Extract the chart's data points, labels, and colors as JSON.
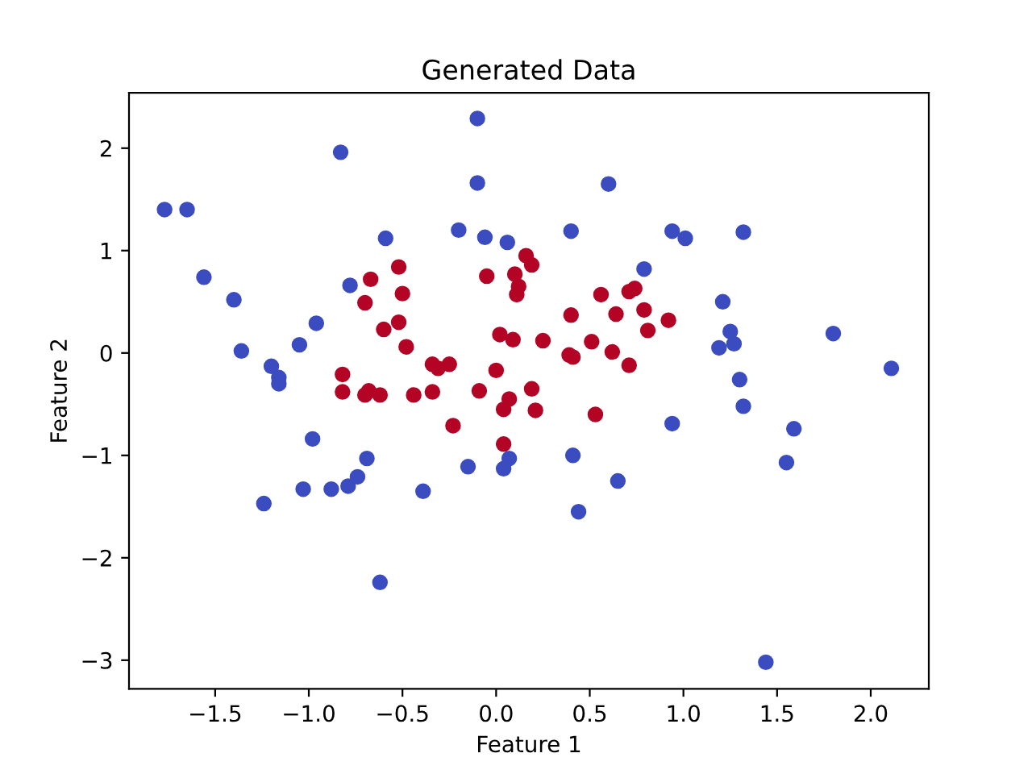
{
  "chart_data": {
    "type": "scatter",
    "title": "Generated Data",
    "xlabel": "Feature 1",
    "ylabel": "Feature 2",
    "xlim": [
      -1.96,
      2.31
    ],
    "ylim": [
      -3.28,
      2.54
    ],
    "xticks": [
      {
        "value": -1.5,
        "label": "−1.5"
      },
      {
        "value": -1.0,
        "label": "−1.0"
      },
      {
        "value": -0.5,
        "label": "−0.5"
      },
      {
        "value": 0.0,
        "label": "0.0"
      },
      {
        "value": 0.5,
        "label": "0.5"
      },
      {
        "value": 1.0,
        "label": "1.0"
      },
      {
        "value": 1.5,
        "label": "1.5"
      },
      {
        "value": 2.0,
        "label": "2.0"
      }
    ],
    "yticks": [
      {
        "value": -3,
        "label": "−3"
      },
      {
        "value": -2,
        "label": "−2"
      },
      {
        "value": -1,
        "label": "−1"
      },
      0,
      1,
      2
    ],
    "grid": false,
    "legend": false,
    "marker": "circle",
    "series": [
      {
        "color": "#3b4cc0",
        "x": [
          -1.77,
          -1.65,
          -1.56,
          -1.4,
          -1.36,
          -1.2,
          -1.16,
          -1.16,
          -1.05,
          -0.96,
          -0.83,
          -0.78,
          -0.59,
          -0.2,
          -0.1,
          -0.1,
          -0.06,
          0.06,
          -1.24,
          -1.03,
          -0.98,
          -0.88,
          -0.79,
          -0.74,
          -0.69,
          -0.62,
          -0.39,
          -0.15,
          0.04,
          0.07,
          0.6,
          0.4,
          0.94,
          1.01,
          1.32,
          0.79,
          1.21,
          1.8,
          1.25,
          1.27,
          1.19,
          1.3,
          2.11,
          1.32,
          1.59,
          1.55,
          0.94,
          0.41,
          0.65,
          0.44,
          1.44
        ],
        "values": [
          1.4,
          1.4,
          0.74,
          0.52,
          0.02,
          -0.13,
          -0.24,
          -0.3,
          0.08,
          0.29,
          1.96,
          0.66,
          1.12,
          1.2,
          2.29,
          1.66,
          1.13,
          1.08,
          -1.47,
          -1.33,
          -0.84,
          -1.33,
          -1.3,
          -1.21,
          -1.03,
          -2.24,
          -1.35,
          -1.11,
          -1.13,
          -1.03,
          1.65,
          1.19,
          1.19,
          1.12,
          1.18,
          0.82,
          0.5,
          0.19,
          0.21,
          0.09,
          0.05,
          -0.26,
          -0.15,
          -0.52,
          -0.74,
          -1.07,
          -0.69,
          -1.0,
          -1.25,
          -1.55,
          -3.02
        ]
      },
      {
        "color": "#b40426",
        "x": [
          0.16,
          0.1,
          0.12,
          0.11,
          -0.05,
          -0.52,
          -0.67,
          -0.5,
          -0.7,
          -0.52,
          -0.6,
          -0.48,
          0.02,
          0.09,
          -0.34,
          -0.31,
          -0.25,
          0.0,
          -0.82,
          -0.82,
          -0.7,
          -0.68,
          -0.62,
          -0.44,
          -0.34,
          -0.09,
          0.07,
          0.19,
          0.04,
          0.21,
          -0.23,
          0.04,
          0.19,
          0.56,
          0.71,
          0.74,
          0.4,
          0.64,
          0.79,
          0.81,
          0.92,
          0.25,
          0.51,
          0.39,
          0.41,
          0.62,
          0.71,
          0.53
        ],
        "values": [
          0.95,
          0.77,
          0.65,
          0.57,
          0.75,
          0.84,
          0.72,
          0.58,
          0.49,
          0.3,
          0.23,
          0.06,
          0.18,
          0.13,
          -0.11,
          -0.15,
          -0.11,
          -0.17,
          -0.21,
          -0.38,
          -0.41,
          -0.37,
          -0.41,
          -0.41,
          -0.38,
          -0.37,
          -0.45,
          -0.35,
          -0.55,
          -0.56,
          -0.71,
          -0.89,
          0.86,
          0.57,
          0.6,
          0.63,
          0.37,
          0.38,
          0.42,
          0.22,
          0.32,
          0.12,
          0.11,
          -0.02,
          -0.04,
          0.01,
          -0.12,
          -0.6
        ]
      }
    ]
  }
}
